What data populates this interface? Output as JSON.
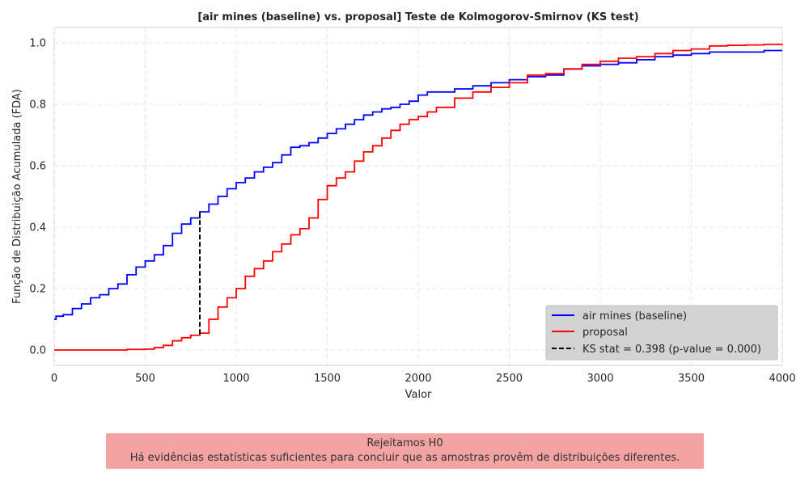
{
  "chart_data": {
    "type": "line",
    "title": "[air mines (baseline) vs. proposal] Teste de Kolmogorov-Smirnov (KS test)",
    "xlabel": "Valor",
    "ylabel": "Função de Distribuição Acumulada (FDA)",
    "xlim": [
      0,
      4000
    ],
    "ylim": [
      -0.05,
      1.05
    ],
    "xticks": [
      0,
      500,
      1000,
      1500,
      2000,
      2500,
      3000,
      3500,
      4000
    ],
    "yticks": [
      0.0,
      0.2,
      0.4,
      0.6,
      0.8,
      1.0
    ],
    "grid": true,
    "legend_position": "lower-right",
    "series": [
      {
        "name": "air mines (baseline)",
        "color": "#0000ff",
        "x": [
          0,
          10,
          50,
          100,
          150,
          200,
          250,
          300,
          350,
          400,
          450,
          500,
          550,
          600,
          650,
          700,
          750,
          800,
          850,
          900,
          950,
          1000,
          1050,
          1100,
          1150,
          1200,
          1250,
          1300,
          1350,
          1400,
          1450,
          1500,
          1550,
          1600,
          1650,
          1700,
          1750,
          1800,
          1850,
          1900,
          1950,
          2000,
          2050,
          2100,
          2200,
          2300,
          2400,
          2500,
          2600,
          2700,
          2800,
          2900,
          3000,
          3100,
          3200,
          3300,
          3400,
          3500,
          3600,
          3700,
          3800,
          3900,
          4000
        ],
        "y": [
          0.1,
          0.11,
          0.115,
          0.135,
          0.15,
          0.17,
          0.18,
          0.2,
          0.215,
          0.245,
          0.27,
          0.29,
          0.31,
          0.34,
          0.38,
          0.41,
          0.43,
          0.45,
          0.475,
          0.5,
          0.525,
          0.545,
          0.56,
          0.58,
          0.595,
          0.61,
          0.635,
          0.66,
          0.665,
          0.675,
          0.69,
          0.705,
          0.72,
          0.735,
          0.75,
          0.765,
          0.775,
          0.785,
          0.79,
          0.8,
          0.81,
          0.83,
          0.84,
          0.84,
          0.85,
          0.86,
          0.87,
          0.88,
          0.89,
          0.895,
          0.915,
          0.925,
          0.93,
          0.935,
          0.945,
          0.955,
          0.96,
          0.965,
          0.97,
          0.97,
          0.97,
          0.975,
          0.975
        ]
      },
      {
        "name": "proposal",
        "color": "#ff0000",
        "x": [
          0,
          380,
          400,
          500,
          550,
          600,
          650,
          700,
          750,
          800,
          850,
          900,
          950,
          1000,
          1050,
          1100,
          1150,
          1200,
          1250,
          1300,
          1350,
          1400,
          1450,
          1500,
          1550,
          1600,
          1650,
          1700,
          1750,
          1800,
          1850,
          1900,
          1950,
          2000,
          2050,
          2100,
          2200,
          2300,
          2400,
          2500,
          2600,
          2700,
          2800,
          2900,
          3000,
          3100,
          3200,
          3300,
          3400,
          3500,
          3600,
          3700,
          3800,
          3900,
          4000
        ],
        "y": [
          0.0,
          0.0,
          0.002,
          0.003,
          0.008,
          0.015,
          0.03,
          0.04,
          0.048,
          0.055,
          0.1,
          0.14,
          0.17,
          0.2,
          0.24,
          0.265,
          0.29,
          0.32,
          0.345,
          0.375,
          0.395,
          0.43,
          0.49,
          0.535,
          0.56,
          0.58,
          0.615,
          0.645,
          0.665,
          0.69,
          0.715,
          0.735,
          0.75,
          0.76,
          0.775,
          0.79,
          0.82,
          0.84,
          0.855,
          0.87,
          0.895,
          0.9,
          0.915,
          0.93,
          0.94,
          0.95,
          0.955,
          0.965,
          0.975,
          0.98,
          0.99,
          0.992,
          0.993,
          0.995,
          0.997
        ]
      }
    ],
    "ks_line": {
      "name": "KS stat = 0.398 (p-value = 0.000)",
      "color": "#000000",
      "x": 800,
      "y_from": 0.052,
      "y_to": 0.45
    }
  },
  "conclusion": {
    "line1": "Rejeitamos H0",
    "line2": "Há evidências estatísticas suficientes para concluir que as amostras provêm de distribuições diferentes.",
    "background": "#f4a3a3"
  }
}
